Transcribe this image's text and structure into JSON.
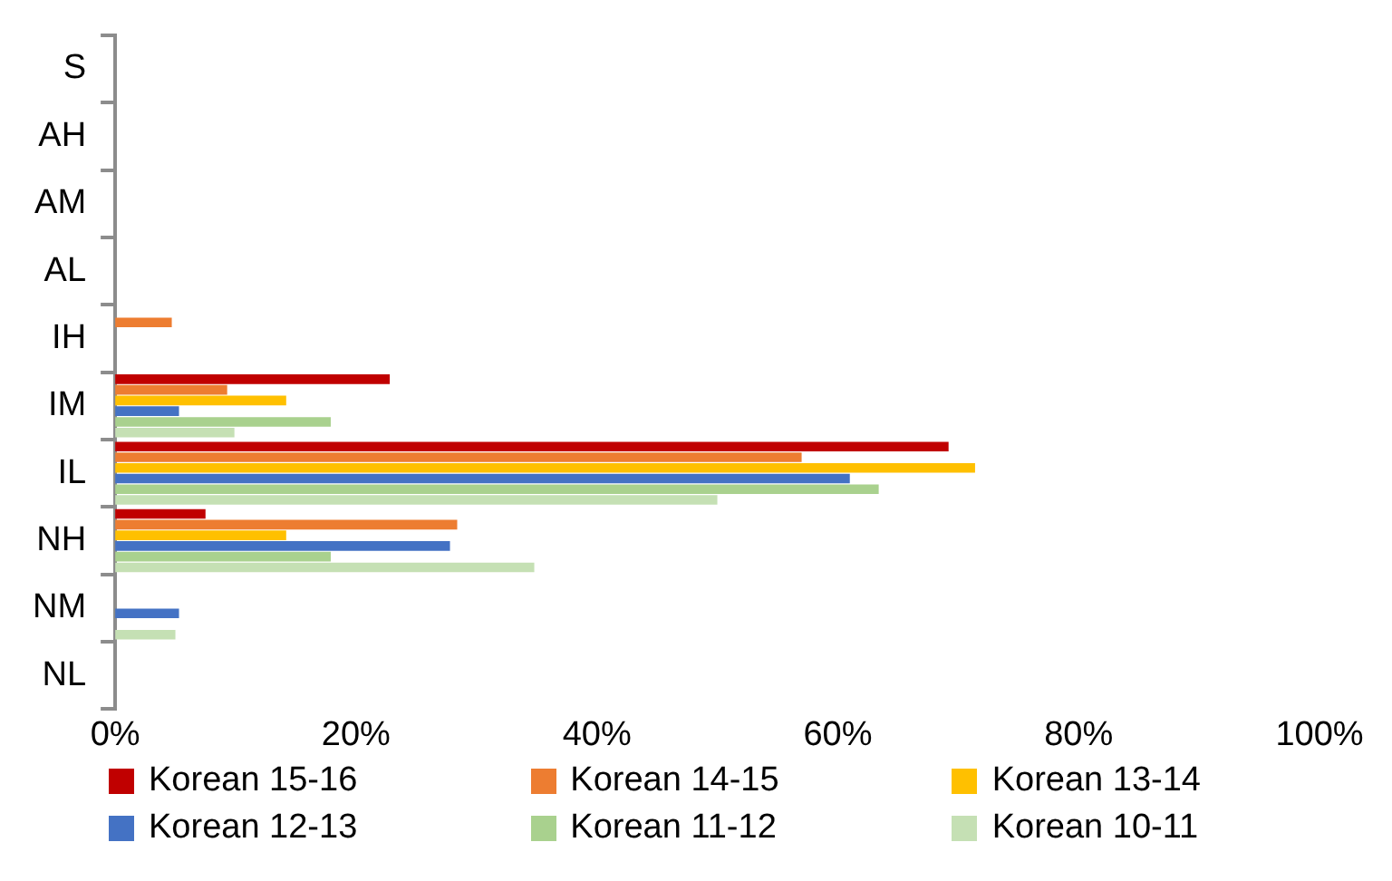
{
  "chart_data": {
    "type": "bar",
    "orientation": "horizontal",
    "categories": [
      "S",
      "AH",
      "AM",
      "AL",
      "IH",
      "IM",
      "IL",
      "NH",
      "NM",
      "NL"
    ],
    "series": [
      {
        "name": "Korean 15-16",
        "color": "#c00000",
        "values": [
          null,
          null,
          null,
          null,
          null,
          22.8,
          69.2,
          7.5,
          null,
          null
        ]
      },
      {
        "name": "Korean 14-15",
        "color": "#ed7d31",
        "values": [
          null,
          null,
          null,
          null,
          4.7,
          9.3,
          57,
          28.4,
          null,
          null
        ]
      },
      {
        "name": "Korean 13-14",
        "color": "#ffc000",
        "values": [
          null,
          null,
          null,
          null,
          null,
          14.2,
          71.4,
          14.2,
          null,
          null
        ]
      },
      {
        "name": "Korean 12-13",
        "color": "#4472c4",
        "values": [
          null,
          null,
          null,
          null,
          null,
          5.3,
          61,
          27.8,
          5.3,
          null
        ]
      },
      {
        "name": "Korean 11-12",
        "color": "#a9d18e",
        "values": [
          null,
          null,
          null,
          null,
          null,
          17.9,
          63.4,
          17.9,
          null,
          null
        ]
      },
      {
        "name": "Korean 10-11",
        "color": "#c5e0b4",
        "values": [
          null,
          null,
          null,
          null,
          null,
          9.9,
          50,
          34.8,
          5,
          null
        ]
      }
    ],
    "xlim": [
      0,
      100
    ],
    "xticks": [
      {
        "value": 0,
        "label": "0%"
      },
      {
        "value": 20,
        "label": "20%"
      },
      {
        "value": 40,
        "label": "40%"
      },
      {
        "value": 60,
        "label": "60%"
      },
      {
        "value": 80,
        "label": "80%"
      },
      {
        "value": 100,
        "label": "100%"
      }
    ],
    "grid": false,
    "legend": "bottom"
  }
}
